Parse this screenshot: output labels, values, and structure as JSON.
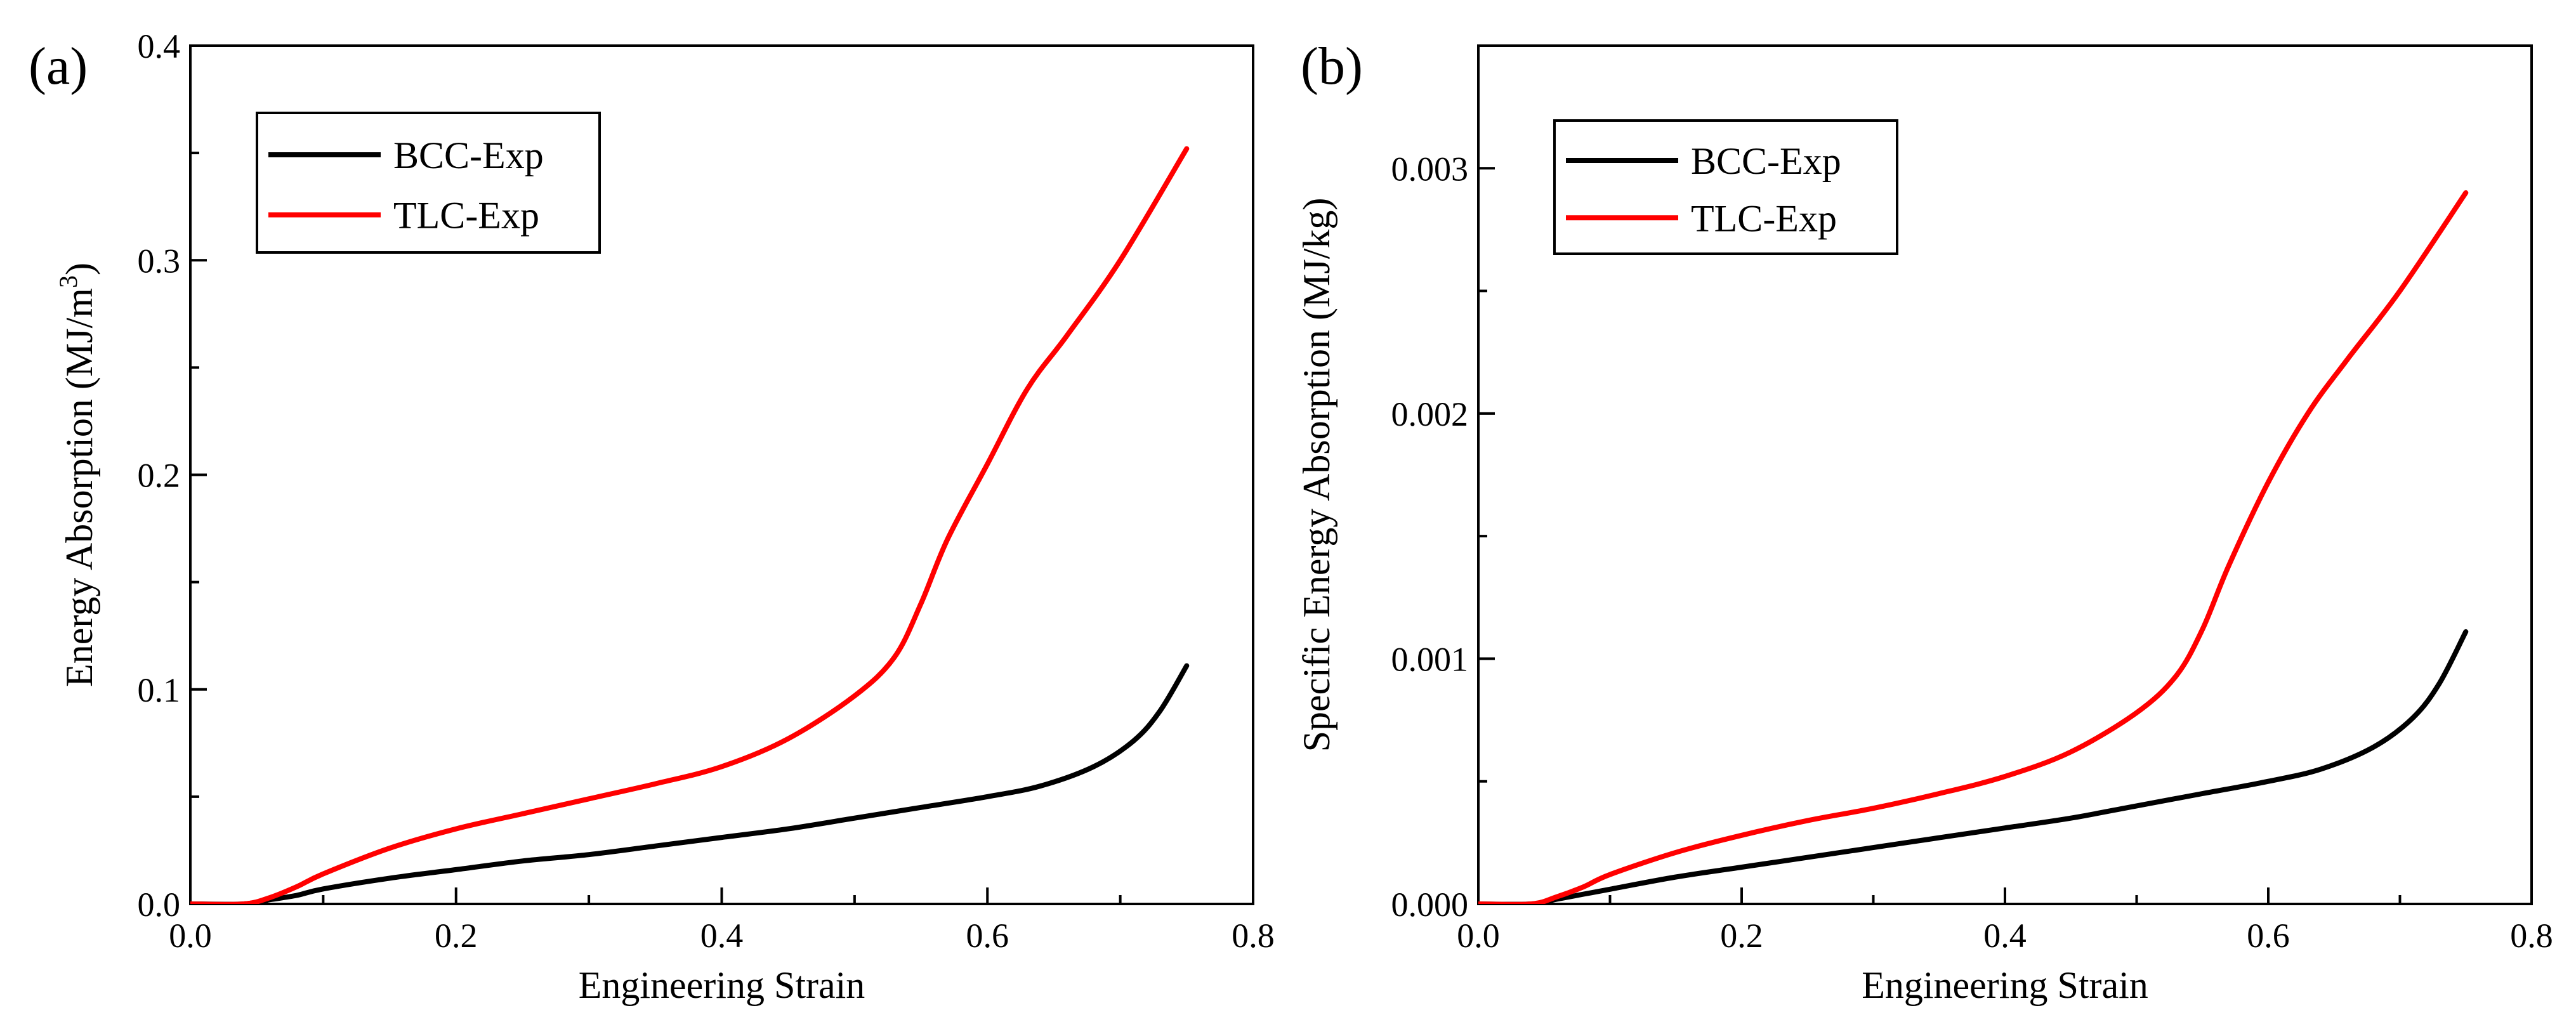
{
  "chart_data": [
    {
      "panel_label": "(a)",
      "type": "line",
      "xlabel": "Engineering Strain",
      "ylabel": "Energy Absorption (MJ/m",
      "ylabel_sup": "3",
      "ylabel_close": ")",
      "xlim": [
        0.0,
        0.8
      ],
      "ylim": [
        0.0,
        0.4
      ],
      "xticks": [
        0.0,
        0.2,
        0.4,
        0.6,
        0.8
      ],
      "xtick_labels": [
        "0.0",
        "0.2",
        "0.4",
        "0.6",
        "0.8"
      ],
      "yticks": [
        0.0,
        0.1,
        0.2,
        0.3,
        0.4
      ],
      "ytick_labels": [
        "0.0",
        "0.1",
        "0.2",
        "0.3",
        "0.4"
      ],
      "legend_position": "top-left",
      "grid": false,
      "series": [
        {
          "name": "BCC-Exp",
          "color": "#000000",
          "x": [
            0.0,
            0.04,
            0.06,
            0.08,
            0.1,
            0.15,
            0.2,
            0.25,
            0.3,
            0.35,
            0.4,
            0.45,
            0.5,
            0.55,
            0.6,
            0.64,
            0.68,
            0.71,
            0.73,
            0.75
          ],
          "y": [
            0.0,
            0.0,
            0.002,
            0.004,
            0.007,
            0.012,
            0.016,
            0.02,
            0.023,
            0.027,
            0.031,
            0.035,
            0.04,
            0.045,
            0.05,
            0.055,
            0.064,
            0.076,
            0.09,
            0.111
          ]
        },
        {
          "name": "TLC-Exp",
          "color": "#ff0000",
          "x": [
            0.0,
            0.04,
            0.06,
            0.08,
            0.1,
            0.15,
            0.2,
            0.25,
            0.3,
            0.35,
            0.4,
            0.45,
            0.5,
            0.53,
            0.55,
            0.57,
            0.6,
            0.63,
            0.66,
            0.7,
            0.75
          ],
          "y": [
            0.0,
            0.0,
            0.003,
            0.008,
            0.014,
            0.026,
            0.035,
            0.042,
            0.049,
            0.056,
            0.064,
            0.077,
            0.097,
            0.115,
            0.14,
            0.17,
            0.205,
            0.24,
            0.265,
            0.3,
            0.352
          ]
        }
      ]
    },
    {
      "panel_label": "(b)",
      "type": "line",
      "xlabel": "Engineering Strain",
      "ylabel": "Specific Energy Absorption (MJ/kg)",
      "xlim": [
        0.0,
        0.8
      ],
      "ylim": [
        0.0,
        0.0035
      ],
      "xticks": [
        0.0,
        0.2,
        0.4,
        0.6,
        0.8
      ],
      "xtick_labels": [
        "0.0",
        "0.2",
        "0.4",
        "0.6",
        "0.8"
      ],
      "yticks": [
        0.0,
        0.001,
        0.002,
        0.003
      ],
      "ytick_labels": [
        "0.000",
        "0.001",
        "0.002",
        "0.003"
      ],
      "legend_position": "top-left",
      "grid": false,
      "series": [
        {
          "name": "BCC-Exp",
          "color": "#000000",
          "x": [
            0.0,
            0.04,
            0.06,
            0.08,
            0.1,
            0.15,
            0.2,
            0.25,
            0.3,
            0.35,
            0.4,
            0.45,
            0.5,
            0.55,
            0.6,
            0.64,
            0.68,
            0.71,
            0.73,
            0.75
          ],
          "y": [
            0.0,
            0.0,
            2e-05,
            4e-05,
            6e-05,
            0.00011,
            0.00015,
            0.00019,
            0.00023,
            0.00027,
            0.00031,
            0.00035,
            0.0004,
            0.00045,
            0.0005,
            0.00055,
            0.00064,
            0.00076,
            0.0009,
            0.00111
          ]
        },
        {
          "name": "TLC-Exp",
          "color": "#ff0000",
          "x": [
            0.0,
            0.04,
            0.06,
            0.08,
            0.1,
            0.15,
            0.2,
            0.25,
            0.3,
            0.35,
            0.4,
            0.45,
            0.5,
            0.53,
            0.55,
            0.57,
            0.6,
            0.63,
            0.66,
            0.7,
            0.75
          ],
          "y": [
            0.0,
            0.0,
            3e-05,
            7e-05,
            0.00012,
            0.00021,
            0.00028,
            0.00034,
            0.00039,
            0.00045,
            0.00052,
            0.00062,
            0.00078,
            0.00093,
            0.00112,
            0.00138,
            0.00172,
            0.002,
            0.00222,
            0.0025,
            0.0029
          ]
        }
      ]
    }
  ]
}
